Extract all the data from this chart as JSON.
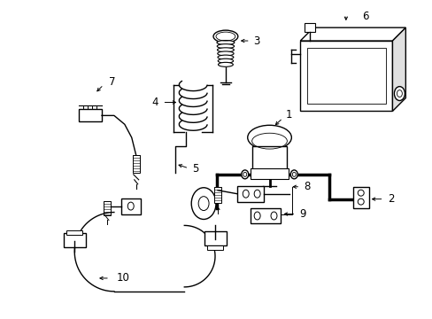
{
  "bg_color": "#ffffff",
  "line_color": "#000000",
  "figsize": [
    4.89,
    3.6
  ],
  "dpi": 100,
  "lw": 1.0
}
